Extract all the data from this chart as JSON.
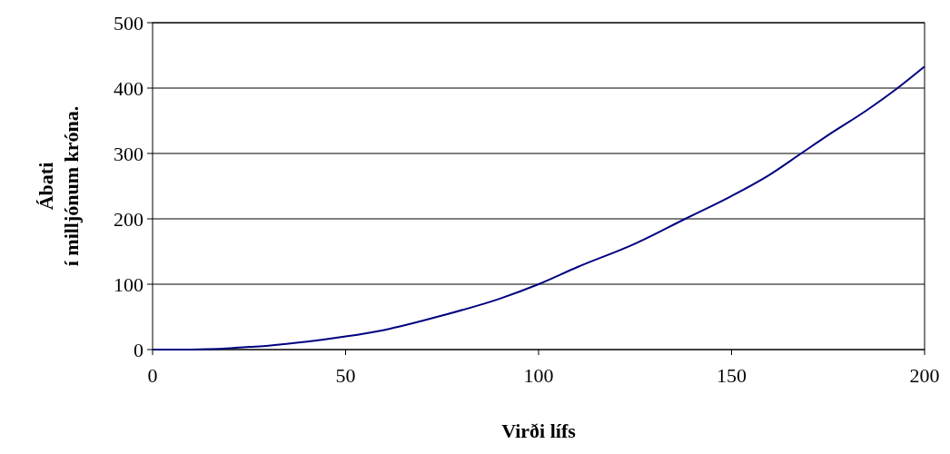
{
  "chart_data": {
    "type": "line",
    "xlabel": "Virði lífs",
    "ylabel": "Ábati\ní milljónum króna.",
    "x": [
      0,
      10,
      20,
      25,
      30,
      40,
      50,
      60,
      75,
      90,
      100,
      110,
      125,
      138,
      150,
      160,
      168,
      175,
      185,
      193,
      200
    ],
    "series": [
      {
        "color": "#000080",
        "values": [
          0,
          0,
          2,
          4,
          6,
          12,
          20,
          30,
          52,
          78,
          100,
          126,
          162,
          200,
          235,
          268,
          300,
          328,
          366,
          400,
          433
        ]
      }
    ],
    "xlim": [
      0,
      200
    ],
    "xticks": [
      0,
      50,
      100,
      150,
      200
    ],
    "ylim": [
      0,
      500
    ],
    "yticks": [
      0,
      100,
      200,
      300,
      400,
      500
    ],
    "grid": "y",
    "marker": "none",
    "line_style": "solid"
  }
}
